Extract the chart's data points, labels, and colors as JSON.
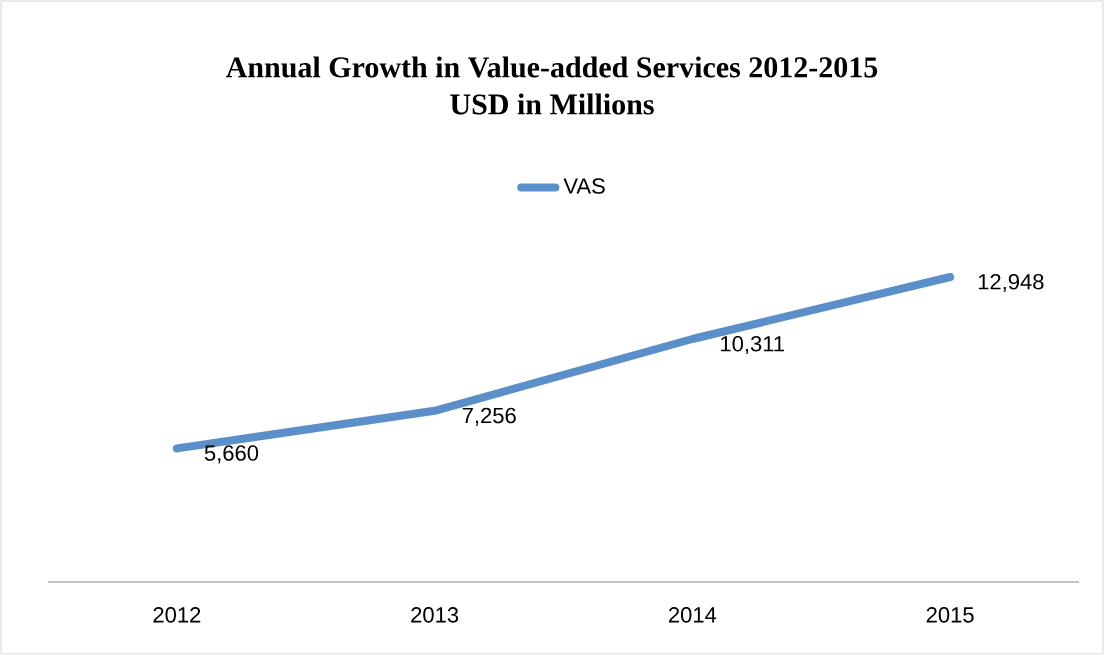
{
  "chart_data": {
    "type": "line",
    "title": "Annual Growth in Value-added Services 2012-2015",
    "subtitle": "USD in Millions",
    "categories": [
      "2012",
      "2013",
      "2014",
      "2015"
    ],
    "series": [
      {
        "name": "VAS",
        "color": "#5b8fc9",
        "values": [
          5660,
          7256,
          10311,
          12948
        ],
        "value_labels": [
          "5,660",
          "7,256",
          "10,311",
          "12,948"
        ]
      }
    ],
    "legend": "top",
    "marker": "none",
    "line_style": "solid"
  }
}
